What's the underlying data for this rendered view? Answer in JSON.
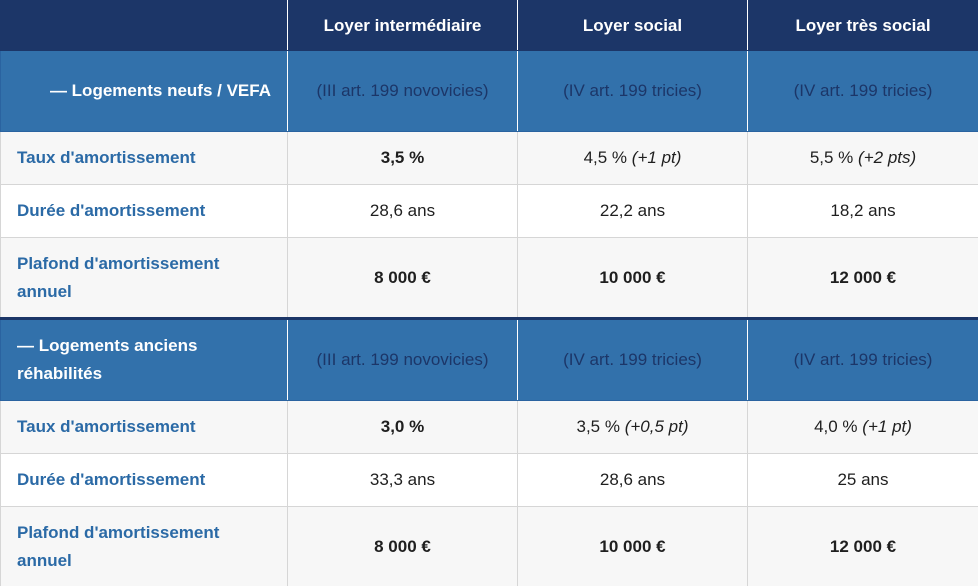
{
  "header": {
    "col1": "Loyer intermédiaire",
    "col2": "Loyer social",
    "col3": "Loyer très social"
  },
  "sections": [
    {
      "label": "— Logements neufs / VEFA",
      "refs": [
        "(III art. 199 novovicies)",
        "(IV art. 199 tricies)",
        "(IV art. 199 tricies)"
      ],
      "rows": [
        {
          "label": "Taux d'amortissement",
          "values": [
            {
              "main": "3,5 %",
              "extra": ""
            },
            {
              "main": "4,5 %",
              "extra": "(+1 pt)"
            },
            {
              "main": "5,5 %",
              "extra": "(+2 pts)"
            }
          ]
        },
        {
          "label": "Durée d'amortissement",
          "values": [
            {
              "main": "28,6 ans",
              "extra": ""
            },
            {
              "main": "22,2 ans",
              "extra": ""
            },
            {
              "main": "18,2 ans",
              "extra": ""
            }
          ]
        },
        {
          "label": "Plafond d'amortissement annuel",
          "values": [
            {
              "main": "8 000 €",
              "extra": ""
            },
            {
              "main": "10 000 €",
              "extra": ""
            },
            {
              "main": "12 000 €",
              "extra": ""
            }
          ]
        }
      ]
    },
    {
      "label": "— Logements anciens réhabilités",
      "refs": [
        "(III art. 199 novovicies)",
        "(IV art. 199 tricies)",
        "(IV art. 199 tricies)"
      ],
      "rows": [
        {
          "label": "Taux d'amortissement",
          "values": [
            {
              "main": "3,0 %",
              "extra": ""
            },
            {
              "main": "3,5 %",
              "extra": "(+0,5 pt)"
            },
            {
              "main": "4,0 %",
              "extra": "(+1 pt)"
            }
          ]
        },
        {
          "label": "Durée d'amortissement",
          "values": [
            {
              "main": "33,3 ans",
              "extra": ""
            },
            {
              "main": "28,6 ans",
              "extra": ""
            },
            {
              "main": "25 ans",
              "extra": ""
            }
          ]
        },
        {
          "label": "Plafond d'amortissement annuel",
          "values": [
            {
              "main": "8 000 €",
              "extra": ""
            },
            {
              "main": "10 000 €",
              "extra": ""
            },
            {
              "main": "12 000 €",
              "extra": ""
            }
          ]
        }
      ]
    }
  ]
}
